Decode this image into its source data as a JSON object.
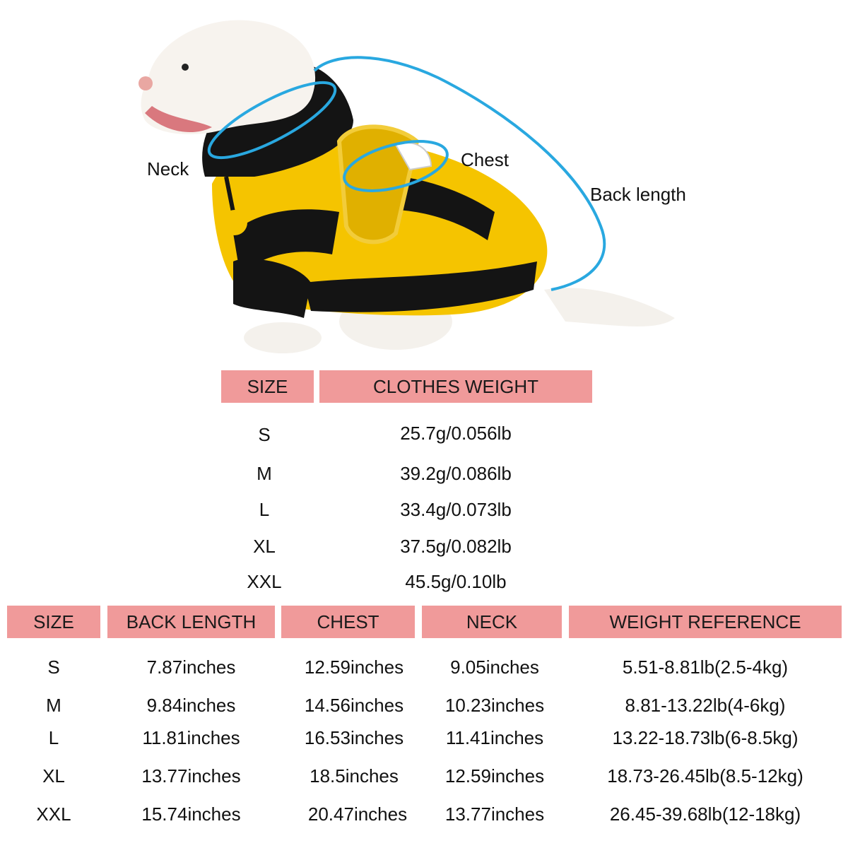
{
  "illustration": {
    "labels": {
      "neck": "Neck",
      "chest": "Chest",
      "back_length": "Back length"
    },
    "measure_line_color": "#29a8e0",
    "header_color": "#f09a9a"
  },
  "weight_table": {
    "headers": [
      "SIZE",
      "CLOTHES WEIGHT"
    ],
    "rows": [
      [
        "S",
        "25.7g/0.056lb"
      ],
      [
        "M",
        "39.2g/0.086lb"
      ],
      [
        "L",
        "33.4g/0.073lb"
      ],
      [
        "XL",
        "37.5g/0.082lb"
      ],
      [
        "XXL",
        "45.5g/0.10lb"
      ]
    ]
  },
  "size_table": {
    "headers": [
      "SIZE",
      "BACK LENGTH",
      "CHEST",
      "NECK",
      "WEIGHT REFERENCE"
    ],
    "rows": [
      [
        "S",
        "7.87inches",
        "12.59inches",
        "9.05inches",
        "5.51-8.81lb(2.5-4kg)"
      ],
      [
        "M",
        "9.84inches",
        "14.56inches",
        "10.23inches",
        "8.81-13.22lb(4-6kg)"
      ],
      [
        "L",
        "11.81inches",
        "16.53inches",
        "11.41inches",
        "13.22-18.73lb(6-8.5kg)"
      ],
      [
        "XL",
        "13.77inches",
        "18.5inches",
        "12.59inches",
        "18.73-26.45lb(8.5-12kg)"
      ],
      [
        "XXL",
        "15.74inches",
        "20.47inches",
        "13.77inches",
        "26.45-39.68lb(12-18kg)"
      ]
    ]
  }
}
